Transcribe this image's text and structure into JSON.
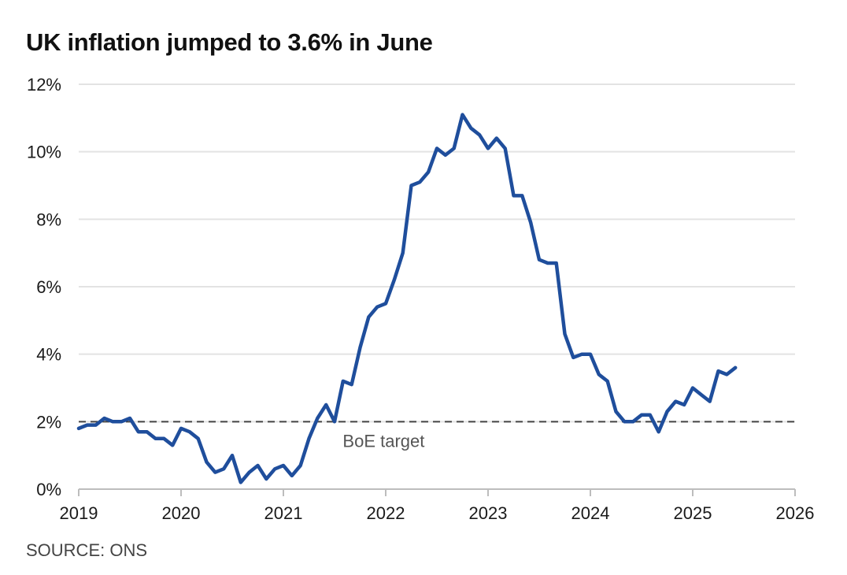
{
  "title": "UK inflation jumped to 3.6% in June",
  "source": "SOURCE: ONS",
  "chart_data": {
    "type": "line",
    "title": "UK inflation jumped to 3.6% in June",
    "xlabel": "",
    "ylabel": "",
    "xlim": [
      2019,
      2026
    ],
    "ylim": [
      0,
      12
    ],
    "x_ticks": [
      2019,
      2020,
      2021,
      2022,
      2023,
      2024,
      2025,
      2026
    ],
    "x_tick_labels": [
      "2019",
      "2020",
      "2021",
      "2022",
      "2023",
      "2024",
      "2025",
      "2026"
    ],
    "y_ticks": [
      0,
      2,
      4,
      6,
      8,
      10,
      12
    ],
    "y_tick_labels": [
      "0%",
      "2%",
      "4%",
      "6%",
      "8%",
      "10%",
      "12%"
    ],
    "grid": "horizontal",
    "series_color": "#1f4e9c",
    "reference_line": {
      "label": "BoE target",
      "value": 2,
      "style": "dashed",
      "color": "#444444"
    },
    "series": [
      {
        "x": [
          "2019-01",
          "2019-02",
          "2019-03",
          "2019-04",
          "2019-05",
          "2019-06",
          "2019-07",
          "2019-08",
          "2019-09",
          "2019-10",
          "2019-11",
          "2019-12",
          "2020-01",
          "2020-02",
          "2020-03",
          "2020-04",
          "2020-05",
          "2020-06",
          "2020-07",
          "2020-08",
          "2020-09",
          "2020-10",
          "2020-11",
          "2020-12",
          "2021-01",
          "2021-02",
          "2021-03",
          "2021-04",
          "2021-05",
          "2021-06",
          "2021-07",
          "2021-08",
          "2021-09",
          "2021-10",
          "2021-11",
          "2021-12",
          "2022-01",
          "2022-02",
          "2022-03",
          "2022-04",
          "2022-05",
          "2022-06",
          "2022-07",
          "2022-08",
          "2022-09",
          "2022-10",
          "2022-11",
          "2022-12",
          "2023-01",
          "2023-02",
          "2023-03",
          "2023-04",
          "2023-05",
          "2023-06",
          "2023-07",
          "2023-08",
          "2023-09",
          "2023-10",
          "2023-11",
          "2023-12",
          "2024-01",
          "2024-02",
          "2024-03",
          "2024-04",
          "2024-05",
          "2024-06",
          "2024-07",
          "2024-08",
          "2024-09",
          "2024-10",
          "2024-11",
          "2024-12",
          "2025-01",
          "2025-02",
          "2025-03",
          "2025-04",
          "2025-05",
          "2025-06"
        ],
        "values": [
          1.8,
          1.9,
          1.9,
          2.1,
          2.0,
          2.0,
          2.1,
          1.7,
          1.7,
          1.5,
          1.5,
          1.3,
          1.8,
          1.7,
          1.5,
          0.8,
          0.5,
          0.6,
          1.0,
          0.2,
          0.5,
          0.7,
          0.3,
          0.6,
          0.7,
          0.4,
          0.7,
          1.5,
          2.1,
          2.5,
          2.0,
          3.2,
          3.1,
          4.2,
          5.1,
          5.4,
          5.5,
          6.2,
          7.0,
          9.0,
          9.1,
          9.4,
          10.1,
          9.9,
          10.1,
          11.1,
          10.7,
          10.5,
          10.1,
          10.4,
          10.1,
          8.7,
          8.7,
          7.9,
          6.8,
          6.7,
          6.7,
          4.6,
          3.9,
          4.0,
          4.0,
          3.4,
          3.2,
          2.3,
          2.0,
          2.0,
          2.2,
          2.2,
          1.7,
          2.3,
          2.6,
          2.5,
          3.0,
          2.8,
          2.6,
          3.5,
          3.4,
          3.6
        ]
      }
    ]
  }
}
